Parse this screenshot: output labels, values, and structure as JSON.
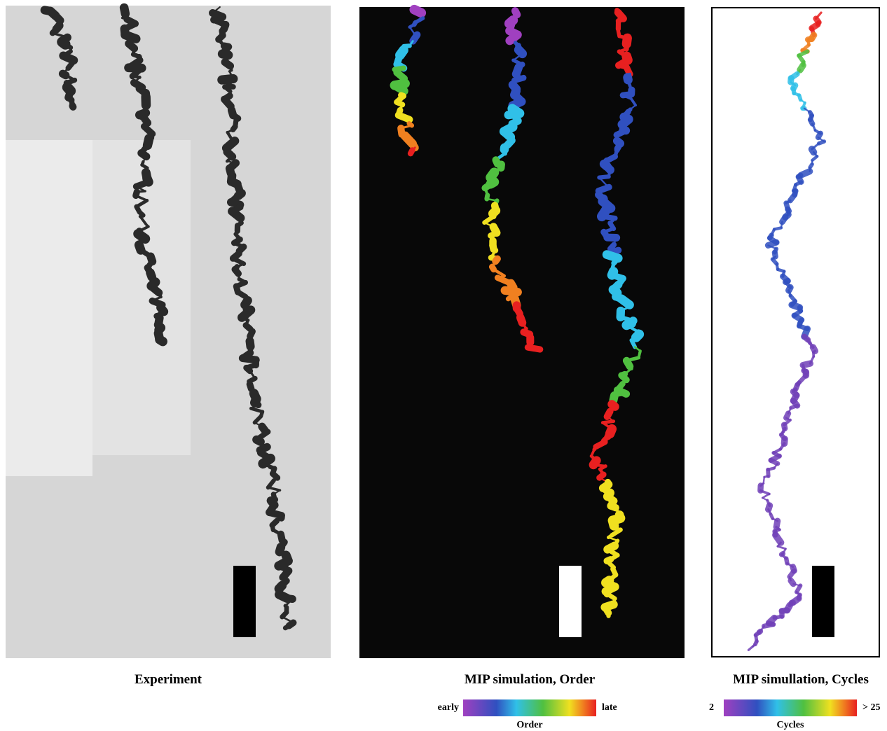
{
  "panels": [
    {
      "caption": "Experiment"
    },
    {
      "caption": "MIP simulation, Order",
      "colorbar": {
        "min_label": "early",
        "max_label": "late",
        "title": "Order"
      }
    },
    {
      "caption": "MIP simullation, Cycles",
      "colorbar": {
        "min_label": 2,
        "max_label": "> 25",
        "title": "Cycles"
      }
    }
  ]
}
